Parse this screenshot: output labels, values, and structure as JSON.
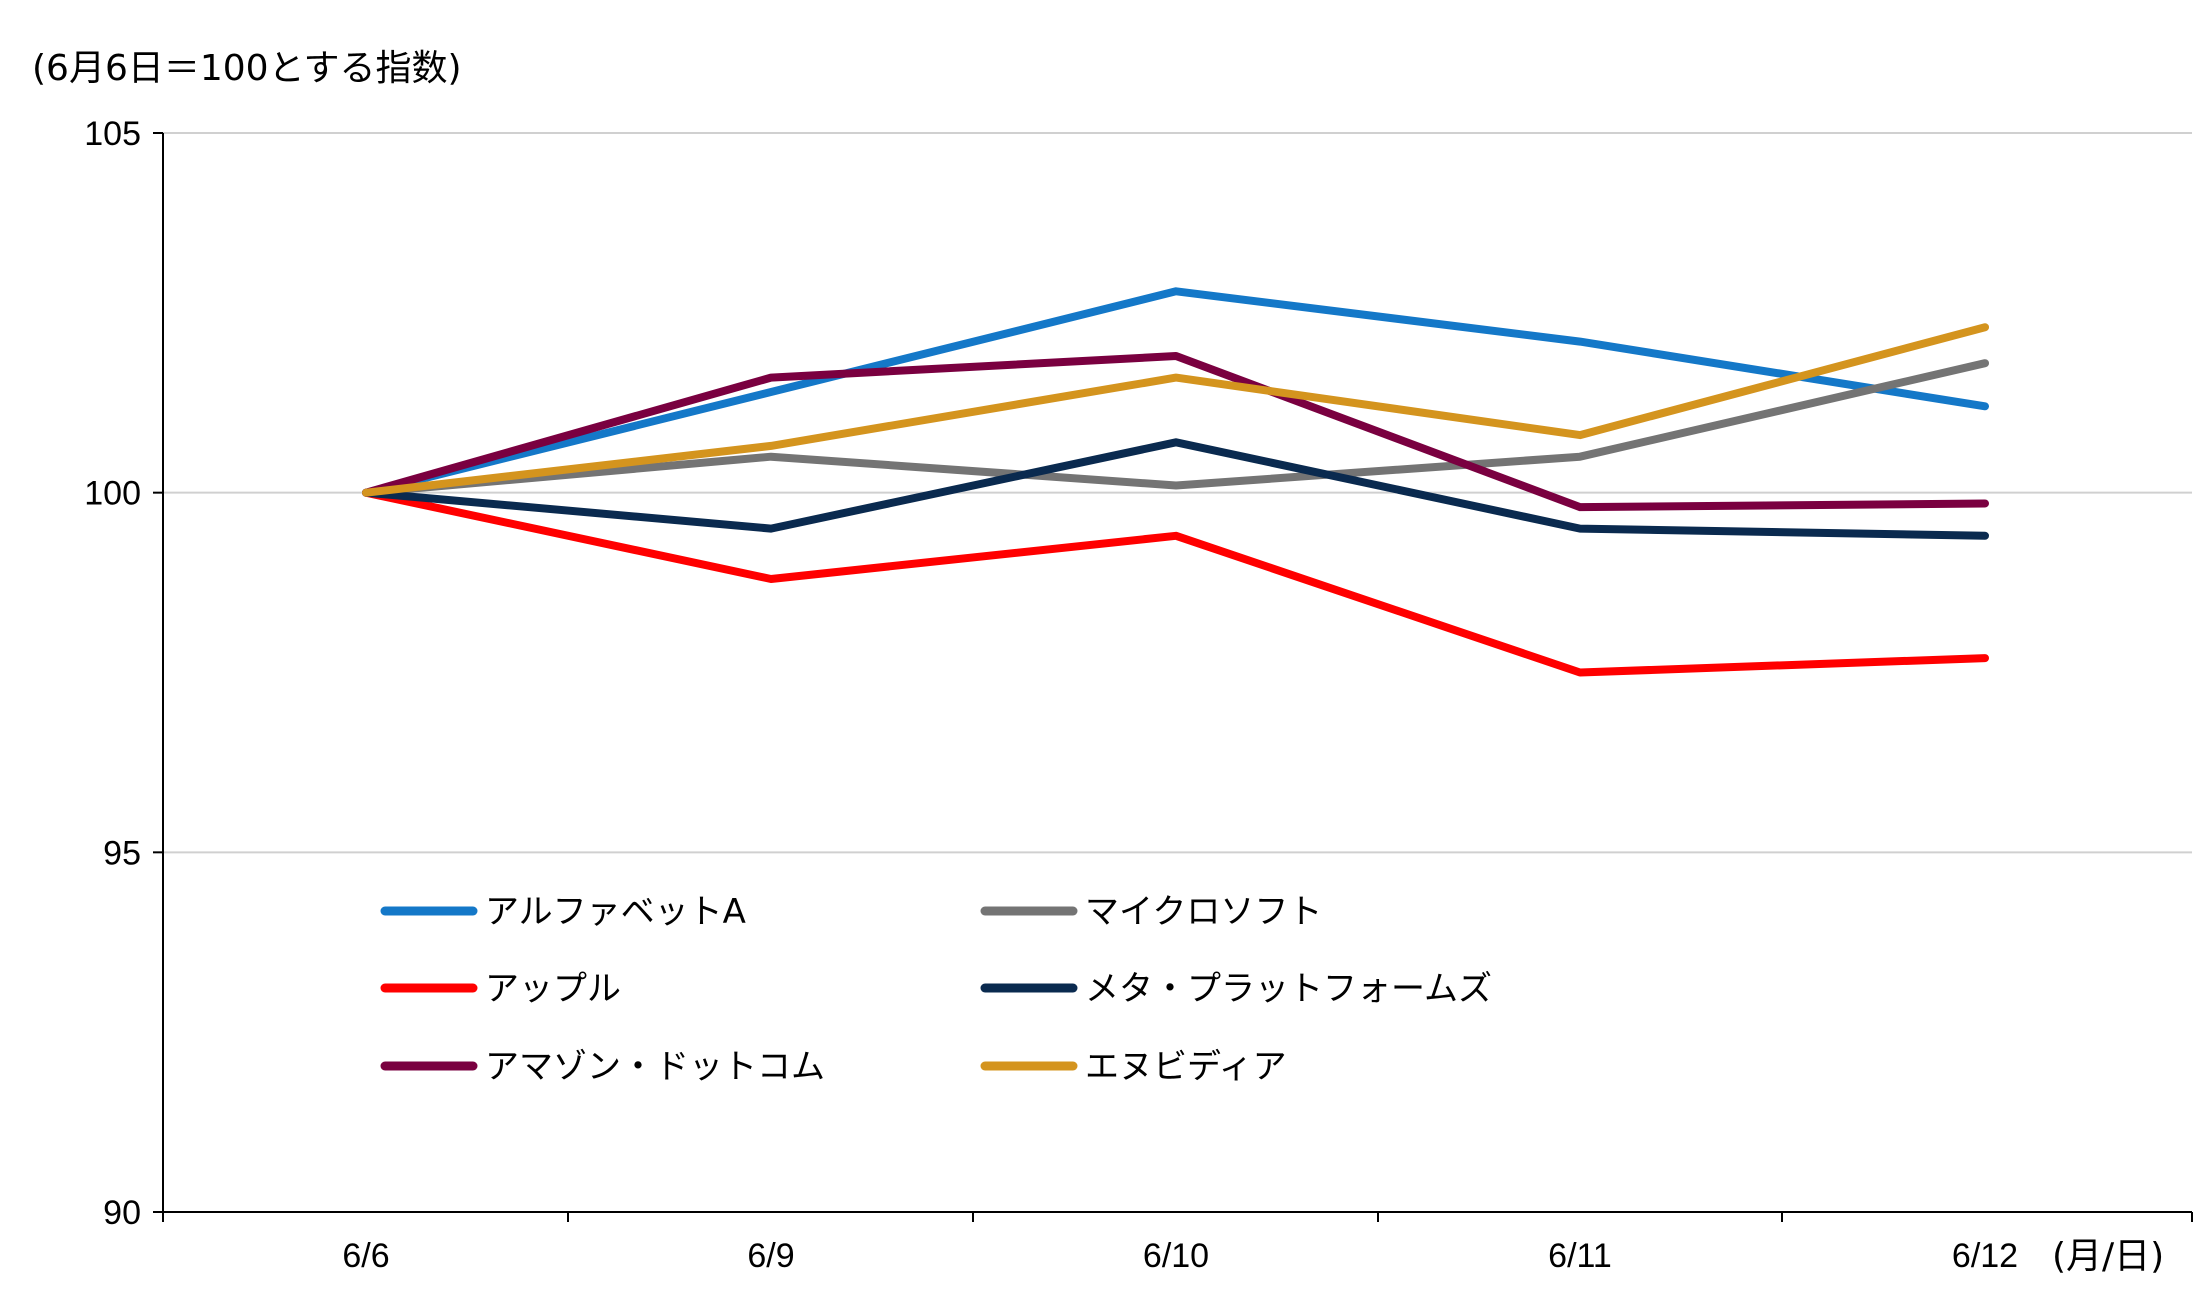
{
  "chart_data": {
    "type": "line",
    "ylabel": "(6月6日＝100とする指数)",
    "xunit": "(月/日)",
    "categories": [
      "6/6",
      "6/9",
      "6/10",
      "6/11",
      "6/12"
    ],
    "ylim": [
      90,
      105
    ],
    "yticks": [
      90,
      95,
      100,
      105
    ],
    "grid": true,
    "legend_placement": "bottom-left",
    "series": [
      {
        "name": "アルファベットA",
        "color": "#1478C8",
        "values": [
          100,
          101.4,
          102.8,
          102.1,
          101.2
        ]
      },
      {
        "name": "マイクロソフト",
        "color": "#747474",
        "values": [
          100,
          100.5,
          100.1,
          100.5,
          101.8
        ]
      },
      {
        "name": "アップル",
        "color": "#FF0000",
        "values": [
          100,
          98.8,
          99.4,
          97.5,
          97.7
        ]
      },
      {
        "name": "メタ・プラットフォームズ",
        "color": "#0A2A4F",
        "values": [
          100,
          99.5,
          100.7,
          99.5,
          99.4
        ]
      },
      {
        "name": "アマゾン・ドットコム",
        "color": "#7A0040",
        "values": [
          100,
          101.6,
          101.9,
          99.8,
          99.85
        ]
      },
      {
        "name": "エヌビディア",
        "color": "#D4941E",
        "values": [
          100,
          100.65,
          101.6,
          100.8,
          102.3
        ]
      }
    ]
  }
}
